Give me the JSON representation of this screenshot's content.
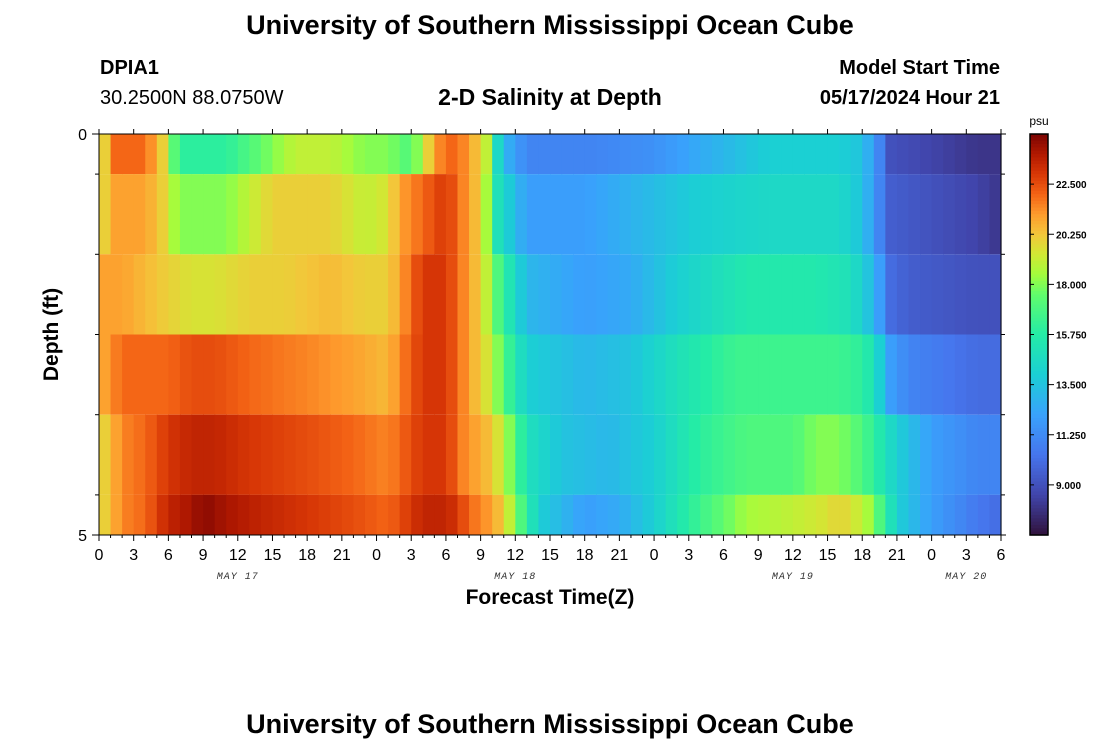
{
  "header": {
    "title": "University of Southern Mississippi Ocean Cube",
    "station_id": "DPIA1",
    "coordinates": "30.2500N  88.0750W",
    "subtitle": "2-D Salinity at Depth",
    "start_time_label": "Model Start Time",
    "start_time_value": "05/17/2024 Hour 21"
  },
  "footer": {
    "title": "University of Southern Mississippi Ocean Cube"
  },
  "chart_data": {
    "type": "heatmap",
    "title": "2-D Salinity at Depth",
    "xlabel": "Forecast Time(Z)",
    "ylabel": "Depth (ft)",
    "x_tick_labels": [
      "0",
      "3",
      "6",
      "9",
      "12",
      "15",
      "18",
      "21",
      "0",
      "3",
      "6",
      "9",
      "12",
      "15",
      "18",
      "21",
      "0",
      "3",
      "6",
      "9",
      "12",
      "15",
      "18",
      "21",
      "0",
      "3",
      "6"
    ],
    "x_start_hour": 0,
    "x_end_hour": 78,
    "date_labels": [
      {
        "label": "MAY 17",
        "hour": 12
      },
      {
        "label": "MAY 18",
        "hour": 36
      },
      {
        "label": "MAY 19",
        "hour": 60
      },
      {
        "label": "MAY 20",
        "hour": 75
      }
    ],
    "y_tick_labels": [
      "0",
      "5"
    ],
    "ylim": [
      0,
      5
    ],
    "y_minor_ticks": [
      0.5,
      1.5,
      2.5,
      3.5,
      4.5
    ],
    "colorbar": {
      "unit": "psu",
      "min": 6.75,
      "max": 24.75,
      "ticks": [
        "22.500",
        "20.250",
        "18.000",
        "15.750",
        "13.500",
        "11.250",
        "9.000"
      ],
      "tick_values": [
        22.5,
        20.25,
        18.0,
        15.75,
        13.5,
        11.25,
        9.0
      ]
    },
    "depth_bands": [
      {
        "y0": 0,
        "y1": 0.5,
        "keyframes": [
          [
            0,
            19
          ],
          [
            0.5,
            20
          ],
          [
            1,
            22
          ],
          [
            2,
            22
          ],
          [
            4,
            22
          ],
          [
            5.5,
            20
          ],
          [
            6,
            18.5
          ],
          [
            7,
            16
          ],
          [
            9,
            16
          ],
          [
            11,
            16
          ],
          [
            13,
            17
          ],
          [
            15,
            18
          ],
          [
            17,
            19
          ],
          [
            20,
            19
          ],
          [
            23,
            18
          ],
          [
            25,
            18
          ],
          [
            27,
            17
          ],
          [
            28,
            19
          ],
          [
            29,
            21
          ],
          [
            30,
            22
          ],
          [
            31,
            22
          ],
          [
            32,
            21
          ],
          [
            33,
            20
          ],
          [
            33.5,
            19
          ],
          [
            34,
            16
          ],
          [
            35,
            13
          ],
          [
            37,
            11
          ],
          [
            43,
            11
          ],
          [
            48,
            11.5
          ],
          [
            52,
            12.5
          ],
          [
            58,
            14
          ],
          [
            64,
            14
          ],
          [
            66,
            13.5
          ],
          [
            67.5,
            11
          ],
          [
            68.5,
            9
          ],
          [
            76,
            8
          ],
          [
            77.5,
            8
          ],
          [
            78,
            6
          ]
        ]
      },
      {
        "y0": 0.5,
        "y1": 1.5,
        "keyframes": [
          [
            0,
            19
          ],
          [
            0.5,
            20
          ],
          [
            1,
            21
          ],
          [
            4,
            21
          ],
          [
            5.5,
            20
          ],
          [
            6,
            19
          ],
          [
            7,
            18
          ],
          [
            9,
            18
          ],
          [
            11,
            18
          ],
          [
            13,
            19
          ],
          [
            15,
            20
          ],
          [
            20,
            20
          ],
          [
            23,
            19
          ],
          [
            25,
            19.5
          ],
          [
            26,
            21
          ],
          [
            28,
            22
          ],
          [
            30,
            23
          ],
          [
            31,
            22
          ],
          [
            32,
            21
          ],
          [
            33,
            20
          ],
          [
            34,
            17
          ],
          [
            34.5,
            15
          ],
          [
            37,
            12
          ],
          [
            42,
            12
          ],
          [
            47,
            13
          ],
          [
            52,
            14
          ],
          [
            58,
            14.5
          ],
          [
            64,
            14.5
          ],
          [
            66,
            13.5
          ],
          [
            67.5,
            11
          ],
          [
            68.5,
            9.5
          ],
          [
            76,
            8.5
          ],
          [
            78,
            8
          ]
        ]
      },
      {
        "y0": 1.5,
        "y1": 2.5,
        "keyframes": [
          [
            0,
            20
          ],
          [
            0.5,
            21
          ],
          [
            2,
            21
          ],
          [
            4,
            20.5
          ],
          [
            6,
            20
          ],
          [
            8,
            19.5
          ],
          [
            10,
            19.5
          ],
          [
            13,
            20
          ],
          [
            16,
            20
          ],
          [
            20,
            20.5
          ],
          [
            23,
            20
          ],
          [
            25,
            20
          ],
          [
            26,
            21
          ],
          [
            28,
            23
          ],
          [
            30,
            23
          ],
          [
            31,
            22
          ],
          [
            32,
            21
          ],
          [
            33,
            20
          ],
          [
            34,
            18
          ],
          [
            35,
            16
          ],
          [
            37,
            13
          ],
          [
            42,
            12
          ],
          [
            46,
            12.5
          ],
          [
            50,
            14
          ],
          [
            56,
            15.5
          ],
          [
            62,
            15.5
          ],
          [
            65,
            15
          ],
          [
            67,
            13
          ],
          [
            68.5,
            10
          ],
          [
            70,
            9.5
          ],
          [
            76,
            9
          ],
          [
            78,
            9
          ]
        ]
      },
      {
        "y0": 2.5,
        "y1": 3.5,
        "keyframes": [
          [
            0,
            20
          ],
          [
            0.5,
            21
          ],
          [
            2,
            22
          ],
          [
            4,
            22
          ],
          [
            6,
            22
          ],
          [
            8,
            22.5
          ],
          [
            10,
            22.5
          ],
          [
            13,
            22
          ],
          [
            18,
            21.5
          ],
          [
            22,
            21
          ],
          [
            25,
            20.5
          ],
          [
            26,
            21.5
          ],
          [
            28,
            23
          ],
          [
            30,
            23
          ],
          [
            31,
            22
          ],
          [
            32,
            21
          ],
          [
            33,
            20
          ],
          [
            34,
            19
          ],
          [
            35,
            17
          ],
          [
            37,
            14
          ],
          [
            42,
            13
          ],
          [
            46,
            13.5
          ],
          [
            50,
            15
          ],
          [
            55,
            16.5
          ],
          [
            60,
            16.5
          ],
          [
            64,
            16.5
          ],
          [
            66,
            16
          ],
          [
            67,
            15
          ],
          [
            68.5,
            12
          ],
          [
            70,
            11
          ],
          [
            76,
            10
          ],
          [
            78,
            10
          ]
        ]
      },
      {
        "y0": 3.5,
        "y1": 4.5,
        "keyframes": [
          [
            0,
            19
          ],
          [
            0.5,
            20
          ],
          [
            2,
            21.5
          ],
          [
            4,
            22
          ],
          [
            6,
            23
          ],
          [
            8,
            23.5
          ],
          [
            10,
            23.5
          ],
          [
            13,
            23
          ],
          [
            18,
            22.5
          ],
          [
            22,
            22
          ],
          [
            25,
            21.5
          ],
          [
            26,
            22
          ],
          [
            28,
            23
          ],
          [
            30,
            23
          ],
          [
            31,
            22
          ],
          [
            32,
            21
          ],
          [
            33,
            21
          ],
          [
            34,
            20
          ],
          [
            35,
            19
          ],
          [
            36,
            17
          ],
          [
            37,
            15
          ],
          [
            40,
            13.5
          ],
          [
            44,
            13
          ],
          [
            48,
            14
          ],
          [
            52,
            16
          ],
          [
            56,
            17
          ],
          [
            60,
            17
          ],
          [
            62,
            18
          ],
          [
            64,
            18
          ],
          [
            66,
            17
          ],
          [
            67,
            16
          ],
          [
            69,
            14
          ],
          [
            72,
            12
          ],
          [
            76,
            11
          ],
          [
            78,
            11
          ]
        ]
      },
      {
        "y0": 4.5,
        "y1": 5,
        "keyframes": [
          [
            0,
            19
          ],
          [
            0.5,
            20
          ],
          [
            2,
            21.5
          ],
          [
            4,
            22
          ],
          [
            6,
            23.5
          ],
          [
            8,
            24
          ],
          [
            9,
            24.5
          ],
          [
            11,
            24
          ],
          [
            14,
            23.5
          ],
          [
            18,
            23
          ],
          [
            22,
            22.5
          ],
          [
            25,
            22
          ],
          [
            26,
            22.5
          ],
          [
            28,
            23.5
          ],
          [
            30,
            23.5
          ],
          [
            31,
            23
          ],
          [
            32,
            22
          ],
          [
            34,
            21
          ],
          [
            35,
            20
          ],
          [
            36,
            18
          ],
          [
            37,
            16
          ],
          [
            38,
            14
          ],
          [
            42,
            12
          ],
          [
            45,
            12.5
          ],
          [
            48,
            14
          ],
          [
            52,
            16.5
          ],
          [
            56,
            18.5
          ],
          [
            60,
            19
          ],
          [
            63,
            19.5
          ],
          [
            64,
            20
          ],
          [
            66,
            19
          ],
          [
            67,
            18
          ],
          [
            68,
            16
          ],
          [
            69,
            14
          ],
          [
            72,
            12
          ],
          [
            76,
            10.5
          ],
          [
            78,
            10
          ]
        ]
      }
    ]
  }
}
